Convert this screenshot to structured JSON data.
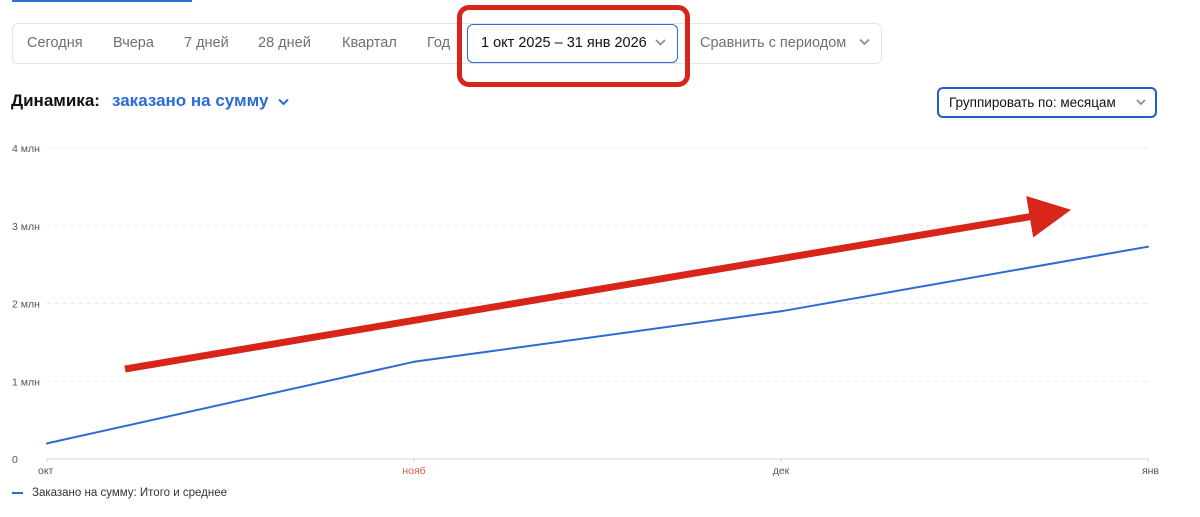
{
  "period_bar": {
    "items": [
      "Сегодня",
      "Вчера",
      "7 дней",
      "28 дней",
      "Квартал",
      "Год"
    ],
    "date_range": "1 окт 2025 – 31 янв 2026",
    "compare_label": "Сравнить с периодом"
  },
  "dynamics": {
    "title": "Динамика:",
    "metric": "заказано на сумму"
  },
  "group_by": {
    "label": "Группировать по: месяцам"
  },
  "chart_data": {
    "type": "line",
    "categories": [
      "окт",
      "нояб",
      "дек",
      "янв"
    ],
    "series": [
      {
        "name": "Заказано на сумму: Итого и среднее",
        "values": [
          200000,
          1250000,
          1900000,
          2730000
        ]
      }
    ],
    "ylim": [
      0,
      4000000
    ],
    "y_ticks": [
      {
        "value": 0,
        "label": "0"
      },
      {
        "value": 1000000,
        "label": "1 млн"
      },
      {
        "value": 2000000,
        "label": "2 млн"
      },
      {
        "value": 3000000,
        "label": "3 млн"
      },
      {
        "value": 4000000,
        "label": "4 млн"
      }
    ],
    "highlighted_category": "нояб",
    "grid": true,
    "legend_position": "bottom-left",
    "colors": {
      "line": "#2c6ad6",
      "grid": "#e6e8eb",
      "highlight_tick": "#e05a4e",
      "annotation": "#d8251a"
    }
  },
  "legend": {
    "label": "Заказано на сумму: Итого и среднее"
  }
}
